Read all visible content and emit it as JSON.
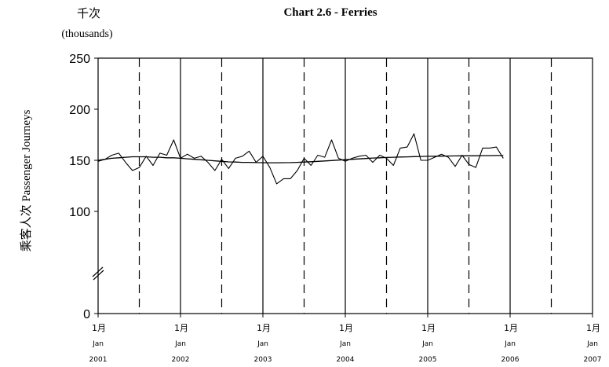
{
  "chart_data": {
    "type": "line",
    "title": "Chart 2.6 -  Ferries",
    "unit_zh": "千次",
    "unit_en": "(thousands)",
    "ylabel": "乘客人次  Passenger Journeys",
    "ylim": [
      0,
      250
    ],
    "yticks": [
      "0",
      "100",
      "150",
      "200",
      "250"
    ],
    "y_axis_break": true,
    "xticks": [
      {
        "zh": "1月",
        "en": "Jan",
        "year": "2001"
      },
      {
        "zh": "1月",
        "en": "Jan",
        "year": "2002"
      },
      {
        "zh": "1月",
        "en": "Jan",
        "year": "2003"
      },
      {
        "zh": "1月",
        "en": "Jan",
        "year": "2004"
      },
      {
        "zh": "1月",
        "en": "Jan",
        "year": "2005"
      },
      {
        "zh": "1月",
        "en": "Jan",
        "year": "2006"
      },
      {
        "zh": "1月",
        "en": "Jan",
        "year": "2007"
      }
    ],
    "grid": "solid vertical line at each January, dashed vertical line at each July",
    "legend": "none",
    "series": [
      {
        "style": "monthly",
        "x_start": "2001-01",
        "values": [
          149,
          151,
          155,
          157,
          148,
          140,
          143,
          154,
          145,
          157,
          155,
          170,
          152,
          156,
          152,
          154,
          148,
          140,
          151,
          142,
          152,
          154,
          159,
          148,
          154,
          143,
          127,
          132,
          132,
          140,
          152,
          145,
          155,
          153,
          170,
          152,
          149,
          152,
          154,
          155,
          148,
          155,
          152,
          145,
          162,
          163,
          176,
          150,
          150,
          153,
          156,
          153,
          144,
          155,
          146,
          143,
          162,
          162,
          163,
          152
        ]
      },
      {
        "style": "trend",
        "x_start": "2001-01",
        "values": [
          150,
          151,
          152,
          152.5,
          153,
          153.5,
          153.5,
          153.5,
          153,
          153,
          152.5,
          152.5,
          152,
          151.5,
          151,
          150.5,
          150,
          149.5,
          149,
          148.5,
          148.3,
          148,
          148,
          147.8,
          147.7,
          147.6,
          147.6,
          147.7,
          147.8,
          148,
          148.3,
          148.6,
          149,
          149.4,
          149.8,
          150.2,
          150.6,
          151,
          151.4,
          151.8,
          152.2,
          152.5,
          152.8,
          153,
          153.2,
          153.4,
          153.6,
          153.8,
          153.9,
          154,
          154.1,
          154.2,
          154.3,
          154.4,
          154.5,
          154.5,
          154.6,
          154.6,
          154.7,
          154.7
        ]
      }
    ]
  }
}
